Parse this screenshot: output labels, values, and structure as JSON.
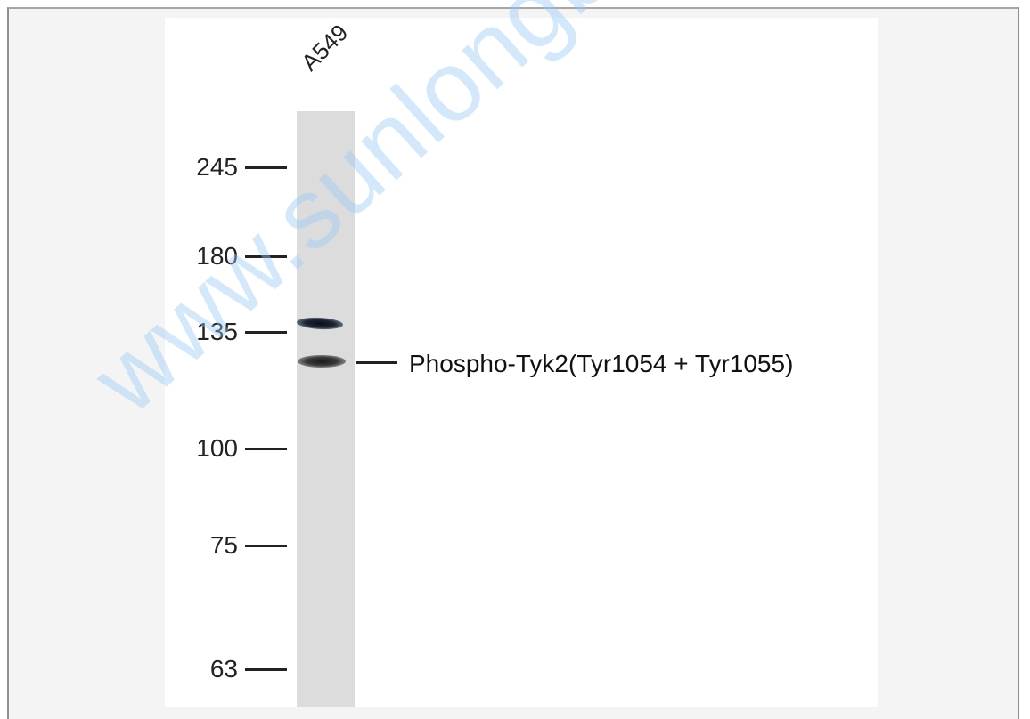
{
  "lane": {
    "label": "A549"
  },
  "markers": [
    {
      "label": "245"
    },
    {
      "label": "180"
    },
    {
      "label": "135"
    },
    {
      "label": "100"
    },
    {
      "label": "75"
    },
    {
      "label": "63"
    }
  ],
  "band": {
    "label": "Phospho-Tyk2(Tyr1054 + Tyr1055)"
  },
  "watermark": {
    "text": "www.sunlongbiotech.com"
  },
  "colors": {
    "lane": "#dcdcdc",
    "watermark": "#96c8f5",
    "band_upper": "#0b0f18",
    "band_lower": "#1a1a1a"
  }
}
